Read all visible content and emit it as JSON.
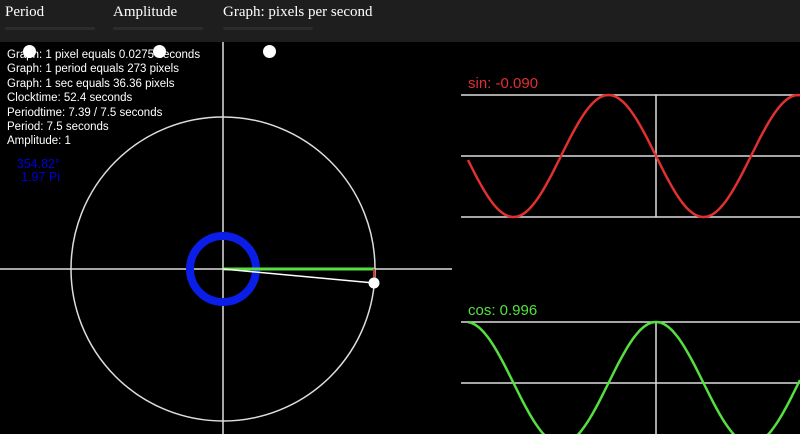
{
  "controls": [
    {
      "label": "Period",
      "value": 0.28
    },
    {
      "label": "Amplitude",
      "value": 0.5
    },
    {
      "label": "Graph: pixels per second",
      "value": 0.5
    }
  ],
  "info": [
    "Graph: 1 pixel equals 0.0275 seconds",
    "Graph: 1 period equals 273 pixels",
    "Graph: 1 sec equals 36.36 pixels",
    "Clocktime: 52.4 seconds",
    "Periodtime: 7.39 / 7.5 seconds",
    "Period: 7.5 seconds",
    "Amplitude: 1"
  ],
  "angle": {
    "degrees": "354.82°",
    "pi": "1.97 Pi"
  },
  "sin_label": "sin: -0.090",
  "cos_label": "cos: 0.996",
  "colors": {
    "sin": "#e03030",
    "cos": "#55e040",
    "ring": "#0a1ee8"
  }
}
